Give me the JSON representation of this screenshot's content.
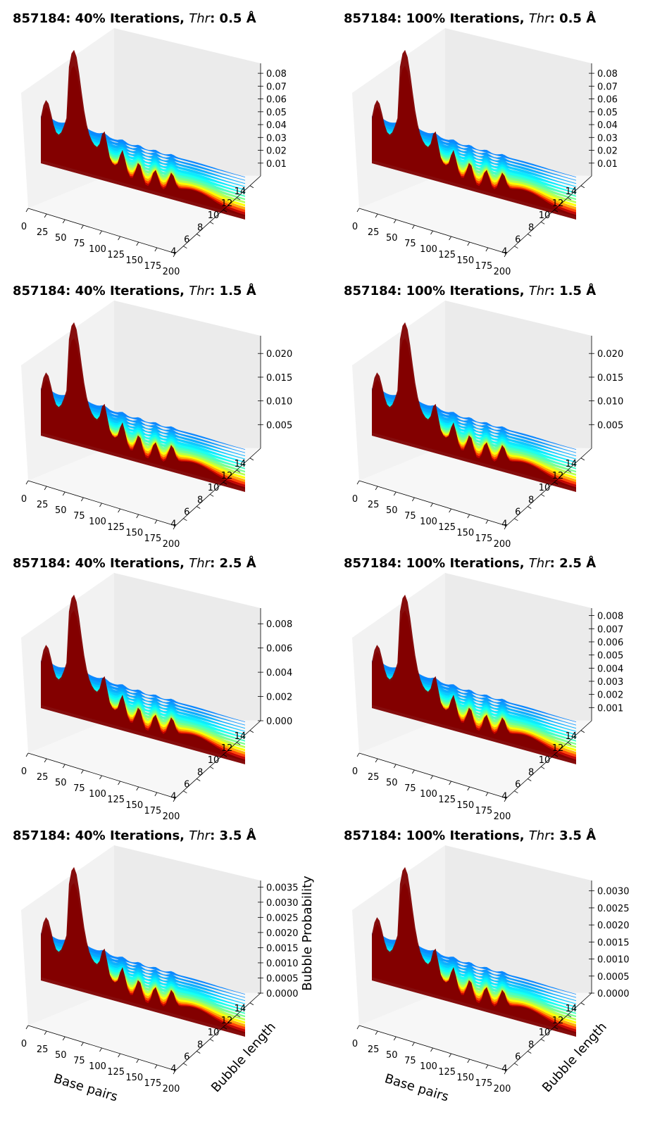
{
  "figure": {
    "x_ticks": [
      "0",
      "25",
      "50",
      "75",
      "100",
      "125",
      "150",
      "175",
      "200"
    ],
    "y_ticks": [
      "4",
      "6",
      "8",
      "10",
      "12",
      "14"
    ],
    "x_label": "Base pairs",
    "y_label": "Bubble length",
    "z_label": "Bubble Probability",
    "colormap": [
      "#00008f",
      "#0000ff",
      "#0080ff",
      "#00ffff",
      "#80ff80",
      "#ffff00",
      "#ff8000",
      "#ff0000",
      "#800000"
    ]
  },
  "chart_data": [
    {
      "type": "surface",
      "title_bold": "857184: 40% Iterations, ",
      "title_italic": "Thr",
      "title_tail": ": 0.5 Å",
      "x_range": [
        0,
        200
      ],
      "y_range": [
        3,
        15
      ],
      "zlim": [
        0,
        0.085
      ],
      "z_ticks": [
        "0.01",
        "0.02",
        "0.03",
        "0.04",
        "0.05",
        "0.06",
        "0.07",
        "0.08"
      ],
      "z_tick_values": [
        0.01,
        0.02,
        0.03,
        0.04,
        0.05,
        0.06,
        0.07,
        0.08
      ],
      "peak_max": 0.08,
      "show_labels": false
    },
    {
      "type": "surface",
      "title_bold": "857184: 100% Iterations, ",
      "title_italic": "Thr",
      "title_tail": ": 0.5 Å",
      "x_range": [
        0,
        200
      ],
      "y_range": [
        3,
        15
      ],
      "zlim": [
        0,
        0.085
      ],
      "z_ticks": [
        "0.01",
        "0.02",
        "0.03",
        "0.04",
        "0.05",
        "0.06",
        "0.07",
        "0.08"
      ],
      "z_tick_values": [
        0.01,
        0.02,
        0.03,
        0.04,
        0.05,
        0.06,
        0.07,
        0.08
      ],
      "peak_max": 0.08,
      "show_labels": false
    },
    {
      "type": "surface",
      "title_bold": "857184: 40% Iterations, ",
      "title_italic": "Thr",
      "title_tail": ": 1.5 Å",
      "x_range": [
        0,
        200
      ],
      "y_range": [
        3,
        15
      ],
      "zlim": [
        0,
        0.023
      ],
      "z_ticks": [
        "0.005",
        "0.010",
        "0.015",
        "0.020"
      ],
      "z_tick_values": [
        0.005,
        0.01,
        0.015,
        0.02
      ],
      "peak_max": 0.02,
      "show_labels": false
    },
    {
      "type": "surface",
      "title_bold": "857184: 100% Iterations, ",
      "title_italic": "Thr",
      "title_tail": ": 1.5 Å",
      "x_range": [
        0,
        200
      ],
      "y_range": [
        3,
        15
      ],
      "zlim": [
        0,
        0.023
      ],
      "z_ticks": [
        "0.005",
        "0.010",
        "0.015",
        "0.020"
      ],
      "z_tick_values": [
        0.005,
        0.01,
        0.015,
        0.02
      ],
      "peak_max": 0.02,
      "show_labels": false
    },
    {
      "type": "surface",
      "title_bold": "857184: 40% Iterations, ",
      "title_italic": "Thr",
      "title_tail": ": 2.5 Å",
      "x_range": [
        0,
        200
      ],
      "y_range": [
        3,
        15
      ],
      "zlim": [
        0,
        0.009
      ],
      "z_ticks": [
        "0.000",
        "0.002",
        "0.004",
        "0.006",
        "0.008"
      ],
      "z_tick_values": [
        0,
        0.002,
        0.004,
        0.006,
        0.008
      ],
      "peak_max": 0.008,
      "show_labels": false
    },
    {
      "type": "surface",
      "title_bold": "857184: 100% Iterations, ",
      "title_italic": "Thr",
      "title_tail": ": 2.5 Å",
      "x_range": [
        0,
        200
      ],
      "y_range": [
        3,
        15
      ],
      "zlim": [
        0,
        0.0083
      ],
      "z_ticks": [
        "0.001",
        "0.002",
        "0.003",
        "0.004",
        "0.005",
        "0.006",
        "0.007",
        "0.008"
      ],
      "z_tick_values": [
        0.001,
        0.002,
        0.003,
        0.004,
        0.005,
        0.006,
        0.007,
        0.008
      ],
      "peak_max": 0.0078,
      "show_labels": false
    },
    {
      "type": "surface",
      "title_bold": "857184: 40% Iterations, ",
      "title_italic": "Thr",
      "title_tail": ": 3.5 Å",
      "x_range": [
        0,
        200
      ],
      "y_range": [
        3,
        15
      ],
      "zlim": [
        0,
        0.0036
      ],
      "z_ticks": [
        "0.0000",
        "0.0005",
        "0.0010",
        "0.0015",
        "0.0020",
        "0.0025",
        "0.0030",
        "0.0035"
      ],
      "z_tick_values": [
        0,
        0.0005,
        0.001,
        0.0015,
        0.002,
        0.0025,
        0.003,
        0.0035
      ],
      "peak_max": 0.0032,
      "show_labels": true
    },
    {
      "type": "surface",
      "title_bold": "857184: 100% Iterations, ",
      "title_italic": "Thr",
      "title_tail": ": 3.5 Å",
      "x_range": [
        0,
        200
      ],
      "y_range": [
        3,
        15
      ],
      "zlim": [
        0,
        0.0032
      ],
      "z_ticks": [
        "0.0000",
        "0.0005",
        "0.0010",
        "0.0015",
        "0.0020",
        "0.0025",
        "0.0030"
      ],
      "z_tick_values": [
        0,
        0.0005,
        0.001,
        0.0015,
        0.002,
        0.0025,
        0.003
      ],
      "peak_max": 0.0027,
      "show_labels": true
    }
  ]
}
